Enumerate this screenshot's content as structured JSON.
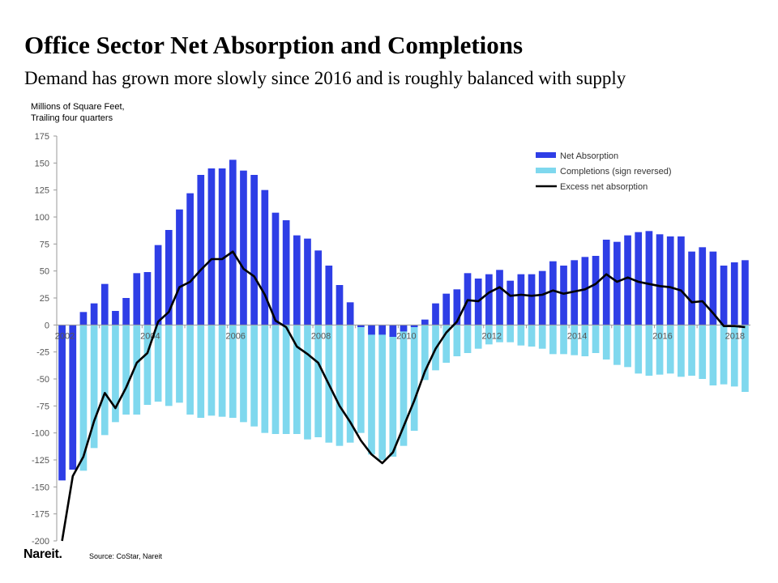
{
  "header": {
    "title": "Office Sector Net Absorption and Completions",
    "subtitle": "Demand has grown more slowly since 2016 and is roughly balanced with supply"
  },
  "axis_unit": {
    "line1": "Millions of Square Feet,",
    "line2": "Trailing four quarters"
  },
  "footer": {
    "logo": "Nareit.",
    "source": "Source: CoStar, Nareit"
  },
  "colors": {
    "net_absorption": "#2e3ee6",
    "completions": "#7fd8ee",
    "excess": "#000000"
  },
  "chart_data": {
    "type": "bar",
    "xlabel": "",
    "ylabel": "Millions of Square Feet, Trailing four quarters",
    "ylim": [
      -200,
      175
    ],
    "yticks": [
      175,
      150,
      125,
      100,
      75,
      50,
      25,
      0,
      -25,
      -50,
      -75,
      -100,
      -125,
      -150,
      -175,
      -200
    ],
    "xtick_labels": [
      "2002",
      "2004",
      "2006",
      "2008",
      "2010",
      "2012",
      "2014",
      "2016",
      "2018"
    ],
    "categories": [
      "2002Q1",
      "2002Q2",
      "2002Q3",
      "2002Q4",
      "2003Q1",
      "2003Q2",
      "2003Q3",
      "2003Q4",
      "2004Q1",
      "2004Q2",
      "2004Q3",
      "2004Q4",
      "2005Q1",
      "2005Q2",
      "2005Q3",
      "2005Q4",
      "2006Q1",
      "2006Q2",
      "2006Q3",
      "2006Q4",
      "2007Q1",
      "2007Q2",
      "2007Q3",
      "2007Q4",
      "2008Q1",
      "2008Q2",
      "2008Q3",
      "2008Q4",
      "2009Q1",
      "2009Q2",
      "2009Q3",
      "2009Q4",
      "2010Q1",
      "2010Q2",
      "2010Q3",
      "2010Q4",
      "2011Q1",
      "2011Q2",
      "2011Q3",
      "2011Q4",
      "2012Q1",
      "2012Q2",
      "2012Q3",
      "2012Q4",
      "2013Q1",
      "2013Q2",
      "2013Q3",
      "2013Q4",
      "2014Q1",
      "2014Q2",
      "2014Q3",
      "2014Q4",
      "2015Q1",
      "2015Q2",
      "2015Q3",
      "2015Q4",
      "2016Q1",
      "2016Q2",
      "2016Q3",
      "2016Q4",
      "2017Q1",
      "2017Q2",
      "2017Q3",
      "2017Q4",
      "2018Q1"
    ],
    "legend_position": "top-right",
    "grid": false,
    "series": [
      {
        "name": "Net Absorption",
        "type": "bar",
        "values": [
          -144,
          -134,
          12,
          20,
          38,
          13,
          25,
          48,
          49,
          74,
          88,
          107,
          122,
          139,
          145,
          145,
          153,
          143,
          139,
          125,
          104,
          97,
          83,
          80,
          69,
          55,
          37,
          21,
          -2,
          -9,
          -9,
          -11,
          -6,
          -2,
          5,
          20,
          29,
          33,
          48,
          43,
          47,
          51,
          41,
          47,
          47,
          50,
          59,
          55,
          60,
          63,
          64,
          79,
          77,
          83,
          86,
          87,
          84,
          82,
          82,
          68,
          72,
          68,
          55,
          58,
          60
        ]
      },
      {
        "name": "Completions (sign reversed)",
        "type": "bar",
        "values": [
          -50,
          -110,
          -135,
          -114,
          -102,
          -90,
          -83,
          -83,
          -74,
          -71,
          -75,
          -72,
          -83,
          -86,
          -84,
          -85,
          -86,
          -90,
          -94,
          -100,
          -101,
          -101,
          -101,
          -106,
          -104,
          -109,
          -112,
          -109,
          -100,
          -120,
          -125,
          -122,
          -112,
          -98,
          -51,
          -42,
          -35,
          -29,
          -26,
          -22,
          -18,
          -16,
          -16,
          -19,
          -20,
          -22,
          -27,
          -27,
          -28,
          -29,
          -26,
          -32,
          -37,
          -39,
          -45,
          -47,
          -46,
          -45,
          -48,
          -47,
          -50,
          -56,
          -55,
          -57,
          -62
        ]
      },
      {
        "name": "Excess net absorption",
        "type": "line",
        "values": [
          -200,
          -140,
          -122,
          -89,
          -63,
          -77,
          -58,
          -35,
          -26,
          3,
          12,
          35,
          40,
          51,
          61,
          61,
          68,
          52,
          45,
          28,
          4,
          -2,
          -20,
          -27,
          -35,
          -55,
          -75,
          -90,
          -107,
          -120,
          -128,
          -118,
          -94,
          -70,
          -43,
          -22,
          -7,
          3,
          23,
          22,
          30,
          35,
          27,
          28,
          27,
          28,
          32,
          29,
          31,
          33,
          38,
          47,
          40,
          44,
          40,
          38,
          36,
          35,
          32,
          21,
          22,
          11,
          -1,
          -1,
          -2
        ]
      }
    ]
  }
}
